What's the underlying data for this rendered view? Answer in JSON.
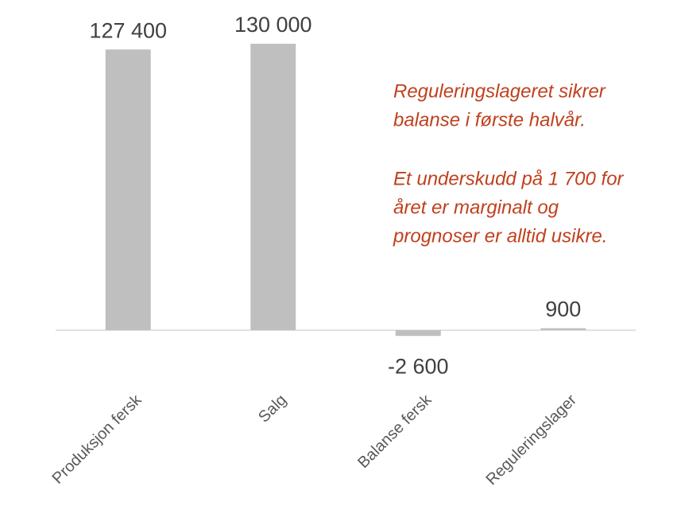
{
  "chart_data": {
    "type": "bar",
    "categories": [
      "Produksjon fersk",
      "Salg",
      "Balanse fersk",
      "Reguleringslager"
    ],
    "values": [
      127400,
      130000,
      -2600,
      900
    ],
    "value_labels": [
      "127 400",
      "130 000",
      "-2 600",
      "900"
    ],
    "color": "#bfbfbf",
    "annotation": [
      [
        "Reguleringslageret sikrer",
        "balanse i første halvår."
      ],
      [
        "Et underskudd på 1 700 for",
        "året er marginalt og",
        "prognoser er alltid usikre."
      ]
    ],
    "annotation_color": "#c0401e"
  }
}
